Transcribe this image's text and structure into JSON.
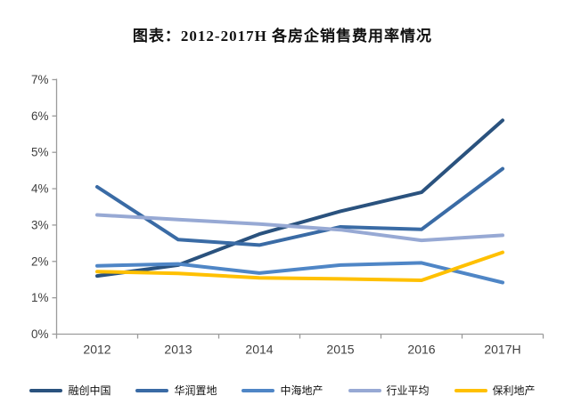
{
  "title": "图表：2012-2017H 各房企销售费用率情况",
  "chart_data": {
    "type": "line",
    "categories": [
      "2012",
      "2013",
      "2014",
      "2015",
      "2016",
      "2017H"
    ],
    "series": [
      {
        "name": "融创中国",
        "color": "#2A527E",
        "values": [
          1.6,
          1.9,
          2.75,
          3.38,
          3.9,
          5.88
        ]
      },
      {
        "name": "华润置地",
        "color": "#3A6BA5",
        "values": [
          4.05,
          2.6,
          2.45,
          2.95,
          2.88,
          4.55
        ]
      },
      {
        "name": "中海地产",
        "color": "#4F86C6",
        "values": [
          1.88,
          1.93,
          1.68,
          1.9,
          1.96,
          1.42
        ]
      },
      {
        "name": "行业平均",
        "color": "#97A9D4",
        "values": [
          3.28,
          3.15,
          3.03,
          2.87,
          2.58,
          2.72
        ]
      },
      {
        "name": "保利地产",
        "color": "#FFC000",
        "values": [
          1.72,
          1.67,
          1.55,
          1.52,
          1.48,
          2.25
        ]
      }
    ],
    "title": "图表：2012-2017H 各房企销售费用率情况",
    "xlabel": "",
    "ylabel": "",
    "y_axis": {
      "min": 0,
      "max": 7,
      "step": 1,
      "tick_labels": [
        "0%",
        "1%",
        "2%",
        "3%",
        "4%",
        "5%",
        "6%",
        "7%"
      ]
    },
    "grid": false,
    "legend_position": "bottom",
    "axis_color": "#9B9B9B",
    "tick_label_color": "#3F3F3F"
  }
}
